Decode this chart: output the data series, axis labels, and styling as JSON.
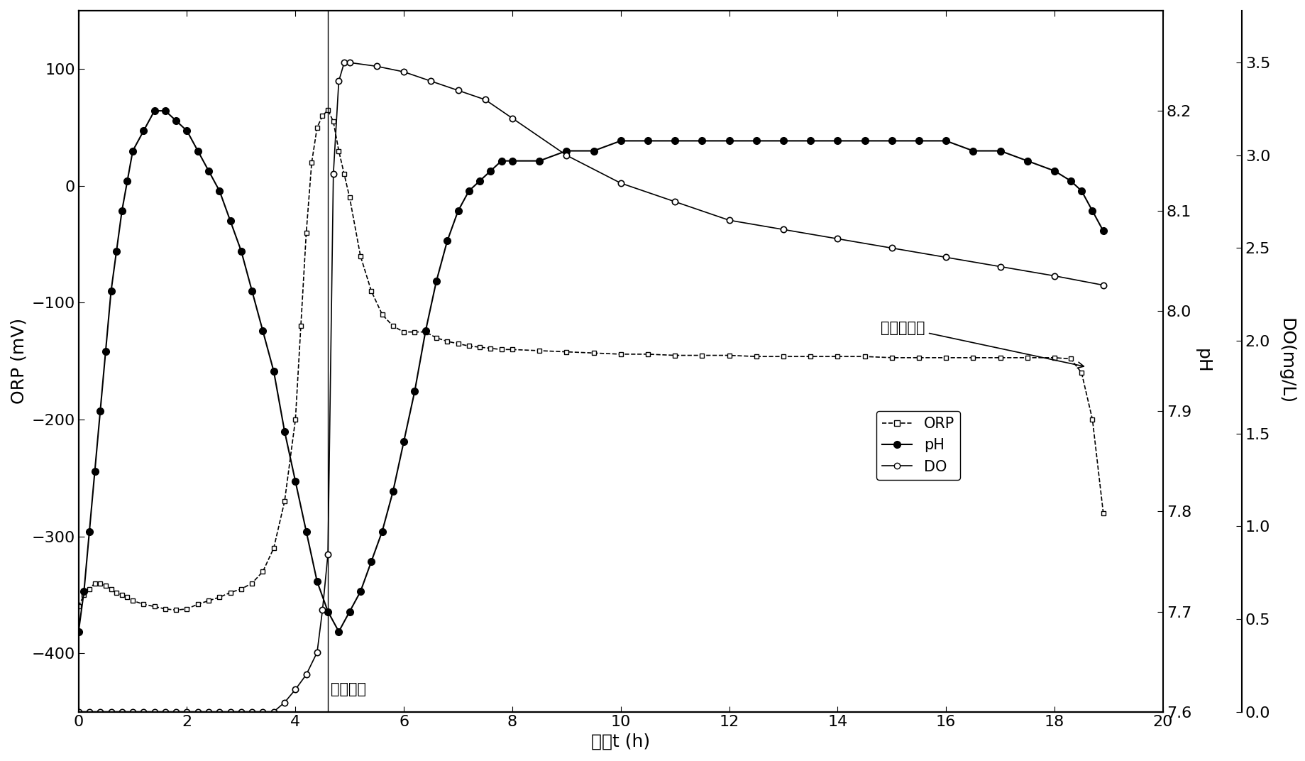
{
  "title": "",
  "xlabel": "时间t (h)",
  "ylabel_left": "ORP (mV)",
  "ylabel_right1": "pH",
  "ylabel_right2": "DO(mg/L)",
  "xlim": [
    0,
    20
  ],
  "ylim_orp": [
    -450,
    150
  ],
  "ylim_ph": [
    7.6,
    8.3
  ],
  "ylim_do": [
    0.0,
    3.78
  ],
  "xticks": [
    0,
    2,
    4,
    6,
    8,
    10,
    12,
    14,
    16,
    18,
    20
  ],
  "yticks_orp": [
    -400,
    -300,
    -200,
    -100,
    0,
    100
  ],
  "yticks_ph": [
    7.6,
    7.7,
    7.8,
    7.9,
    8.0,
    8.1,
    8.2
  ],
  "yticks_do": [
    0.0,
    0.5,
    1.0,
    1.5,
    2.0,
    2.5,
    3.0,
    3.5
  ],
  "annotation1_text": "确化终点",
  "annotation2_text": "反确化终点",
  "background_color": "#ffffff",
  "orp_x": [
    0,
    0.1,
    0.2,
    0.3,
    0.4,
    0.5,
    0.6,
    0.7,
    0.8,
    0.9,
    1.0,
    1.2,
    1.4,
    1.6,
    1.8,
    2.0,
    2.2,
    2.4,
    2.6,
    2.8,
    3.0,
    3.2,
    3.4,
    3.6,
    3.8,
    4.0,
    4.1,
    4.2,
    4.3,
    4.4,
    4.5,
    4.6,
    4.7,
    4.8,
    4.9,
    5.0,
    5.2,
    5.4,
    5.6,
    5.8,
    6.0,
    6.2,
    6.4,
    6.6,
    6.8,
    7.0,
    7.2,
    7.4,
    7.6,
    7.8,
    8.0,
    8.5,
    9.0,
    9.5,
    10.0,
    10.5,
    11.0,
    11.5,
    12.0,
    12.5,
    13.0,
    13.5,
    14.0,
    14.5,
    15.0,
    15.5,
    16.0,
    16.5,
    17.0,
    17.5,
    18.0,
    18.3,
    18.5,
    18.7,
    18.9
  ],
  "orp_y": [
    -360,
    -350,
    -345,
    -340,
    -340,
    -342,
    -345,
    -348,
    -350,
    -352,
    -355,
    -358,
    -360,
    -362,
    -363,
    -362,
    -358,
    -355,
    -352,
    -348,
    -345,
    -340,
    -330,
    -310,
    -270,
    -200,
    -120,
    -40,
    20,
    50,
    60,
    65,
    55,
    30,
    10,
    -10,
    -60,
    -90,
    -110,
    -120,
    -125,
    -125,
    -125,
    -130,
    -133,
    -135,
    -137,
    -138,
    -139,
    -140,
    -140,
    -141,
    -142,
    -143,
    -144,
    -144,
    -145,
    -145,
    -145,
    -146,
    -146,
    -146,
    -146,
    -146,
    -147,
    -147,
    -147,
    -147,
    -147,
    -147,
    -147,
    -148,
    -160,
    -200,
    -280
  ],
  "ph_x": [
    0,
    0.1,
    0.2,
    0.3,
    0.4,
    0.5,
    0.6,
    0.7,
    0.8,
    0.9,
    1.0,
    1.2,
    1.4,
    1.6,
    1.8,
    2.0,
    2.2,
    2.4,
    2.6,
    2.8,
    3.0,
    3.2,
    3.4,
    3.6,
    3.8,
    4.0,
    4.2,
    4.4,
    4.6,
    4.8,
    5.0,
    5.2,
    5.4,
    5.6,
    5.8,
    6.0,
    6.2,
    6.4,
    6.6,
    6.8,
    7.0,
    7.2,
    7.4,
    7.6,
    7.8,
    8.0,
    8.5,
    9.0,
    9.5,
    10.0,
    10.5,
    11.0,
    11.5,
    12.0,
    12.5,
    13.0,
    13.5,
    14.0,
    14.5,
    15.0,
    15.5,
    16.0,
    16.5,
    17.0,
    17.5,
    18.0,
    18.3,
    18.5,
    18.7,
    18.9
  ],
  "ph_y": [
    7.68,
    7.72,
    7.78,
    7.84,
    7.9,
    7.96,
    8.02,
    8.06,
    8.1,
    8.13,
    8.16,
    8.18,
    8.2,
    8.2,
    8.19,
    8.18,
    8.16,
    8.14,
    8.12,
    8.09,
    8.06,
    8.02,
    7.98,
    7.94,
    7.88,
    7.83,
    7.78,
    7.73,
    7.7,
    7.68,
    7.7,
    7.72,
    7.75,
    7.78,
    7.82,
    7.87,
    7.92,
    7.98,
    8.03,
    8.07,
    8.1,
    8.12,
    8.13,
    8.14,
    8.15,
    8.15,
    8.15,
    8.16,
    8.16,
    8.17,
    8.17,
    8.17,
    8.17,
    8.17,
    8.17,
    8.17,
    8.17,
    8.17,
    8.17,
    8.17,
    8.17,
    8.17,
    8.16,
    8.16,
    8.15,
    8.14,
    8.13,
    8.12,
    8.1,
    8.08
  ],
  "do_x": [
    0,
    0.2,
    0.4,
    0.6,
    0.8,
    1.0,
    1.2,
    1.4,
    1.6,
    1.8,
    2.0,
    2.2,
    2.4,
    2.6,
    2.8,
    3.0,
    3.2,
    3.4,
    3.6,
    3.8,
    4.0,
    4.2,
    4.4,
    4.5,
    4.6,
    4.7,
    4.8,
    4.9,
    5.0,
    5.5,
    6.0,
    6.5,
    7.0,
    7.5,
    8.0,
    9.0,
    10.0,
    11.0,
    12.0,
    13.0,
    14.0,
    15.0,
    16.0,
    17.0,
    18.0,
    18.9
  ],
  "do_y": [
    0.0,
    0.0,
    0.0,
    0.0,
    0.0,
    0.0,
    0.0,
    0.0,
    0.0,
    0.0,
    0.0,
    0.0,
    0.0,
    0.0,
    0.0,
    0.0,
    0.0,
    0.0,
    0.0,
    0.05,
    0.12,
    0.2,
    0.32,
    0.55,
    0.85,
    2.9,
    3.4,
    3.5,
    3.5,
    3.48,
    3.45,
    3.4,
    3.35,
    3.3,
    3.2,
    3.0,
    2.85,
    2.75,
    2.65,
    2.6,
    2.55,
    2.5,
    2.45,
    2.4,
    2.35,
    2.3
  ]
}
